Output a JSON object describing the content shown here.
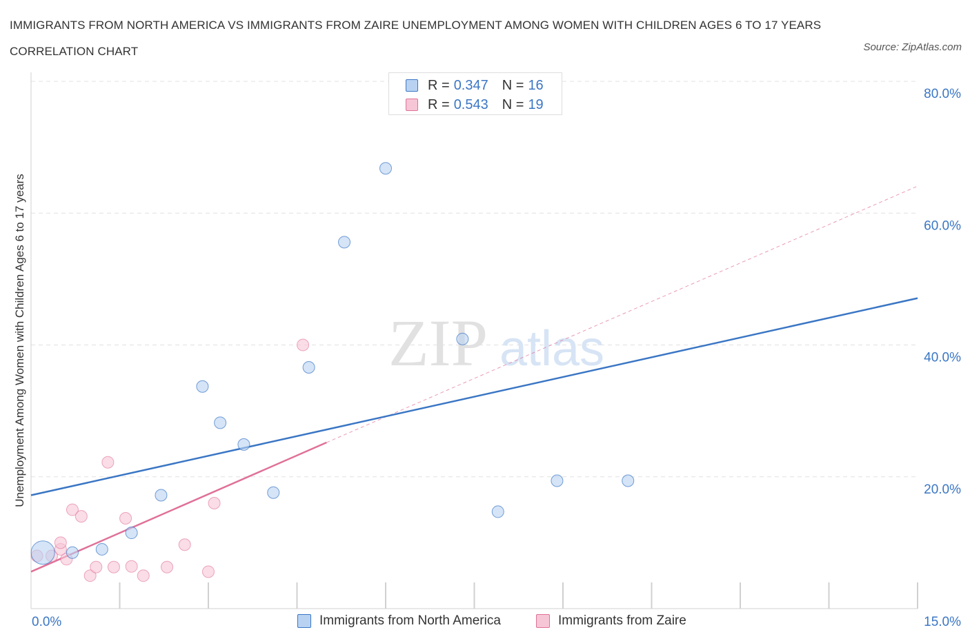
{
  "title": "IMMIGRANTS FROM NORTH AMERICA VS IMMIGRANTS FROM ZAIRE UNEMPLOYMENT AMONG WOMEN WITH CHILDREN AGES 6 TO 17 YEARS CORRELATION CHART",
  "source": "Source: ZipAtlas.com",
  "colors": {
    "blue": "#3a76c4",
    "blue_fill": "#b9d2f2",
    "pink": "#e07098",
    "pink_fill": "#f7c6d6",
    "grid": "#e0e0e0",
    "axis_tick_text": "#3a76c4"
  },
  "legend": {
    "blue": {
      "r_label": "R =",
      "r_value": "0.347",
      "n_label": "N =",
      "n_value": "16"
    },
    "pink": {
      "r_label": "R =",
      "r_value": "0.543",
      "n_label": "N =",
      "n_value": "19"
    }
  },
  "watermark": {
    "zip": "ZIP",
    "atlas": "atlas"
  },
  "chart_data": {
    "type": "scatter",
    "title": "IMMIGRANTS FROM NORTH AMERICA VS IMMIGRANTS FROM ZAIRE UNEMPLOYMENT AMONG WOMEN WITH CHILDREN AGES 6 TO 17 YEARS CORRELATION CHART",
    "xlabel": "",
    "ylabel": "Unemployment Among Women with Children Ages 6 to 17 years",
    "xlim": [
      0,
      15
    ],
    "ylim": [
      0,
      80
    ],
    "x_tick_labels": [
      "0.0%",
      "15.0%"
    ],
    "y_ticks": [
      20,
      40,
      60,
      80
    ],
    "y_tick_labels": [
      "20.0%",
      "40.0%",
      "60.0%",
      "80.0%"
    ],
    "grid": true,
    "legend_position": "top-center",
    "series": [
      {
        "name": "Immigrants from North America",
        "color": "#3a76c4",
        "points": [
          {
            "x": 0.2,
            "y": 8.5,
            "big": true
          },
          {
            "x": 0.7,
            "y": 8.5
          },
          {
            "x": 1.2,
            "y": 9.0
          },
          {
            "x": 1.7,
            "y": 11.5
          },
          {
            "x": 2.2,
            "y": 17.2
          },
          {
            "x": 2.9,
            "y": 33.7
          },
          {
            "x": 3.2,
            "y": 28.2
          },
          {
            "x": 3.6,
            "y": 24.9
          },
          {
            "x": 4.1,
            "y": 17.6
          },
          {
            "x": 4.7,
            "y": 36.6
          },
          {
            "x": 5.3,
            "y": 55.6
          },
          {
            "x": 6.0,
            "y": 66.8
          },
          {
            "x": 7.3,
            "y": 40.9
          },
          {
            "x": 7.9,
            "y": 14.7
          },
          {
            "x": 8.9,
            "y": 19.4
          },
          {
            "x": 10.1,
            "y": 19.4
          }
        ],
        "trend": {
          "x": [
            0,
            15
          ],
          "y": [
            17.2,
            47.1
          ],
          "style": "solid"
        }
      },
      {
        "name": "Immigrants from Zaire",
        "color": "#e07098",
        "points": [
          {
            "x": 0.1,
            "y": 8.0
          },
          {
            "x": 0.35,
            "y": 8.0
          },
          {
            "x": 0.5,
            "y": 9.0
          },
          {
            "x": 0.5,
            "y": 10.0
          },
          {
            "x": 0.6,
            "y": 7.5
          },
          {
            "x": 0.7,
            "y": 15.0
          },
          {
            "x": 0.85,
            "y": 14.0
          },
          {
            "x": 1.0,
            "y": 5.0
          },
          {
            "x": 1.1,
            "y": 6.3
          },
          {
            "x": 1.3,
            "y": 22.2
          },
          {
            "x": 1.4,
            "y": 6.3
          },
          {
            "x": 1.6,
            "y": 13.7
          },
          {
            "x": 1.7,
            "y": 6.4
          },
          {
            "x": 1.9,
            "y": 5.0
          },
          {
            "x": 2.3,
            "y": 6.3
          },
          {
            "x": 2.6,
            "y": 9.7
          },
          {
            "x": 3.0,
            "y": 5.6
          },
          {
            "x": 3.1,
            "y": 16.0
          },
          {
            "x": 4.6,
            "y": 40.0
          }
        ],
        "trend": {
          "x": [
            0,
            5.0
          ],
          "y": [
            5.6,
            25.2
          ],
          "style": "solid"
        },
        "trend_extension": {
          "x": [
            5.0,
            15
          ],
          "y": [
            25.2,
            64.1
          ],
          "style": "dashed"
        }
      }
    ]
  }
}
